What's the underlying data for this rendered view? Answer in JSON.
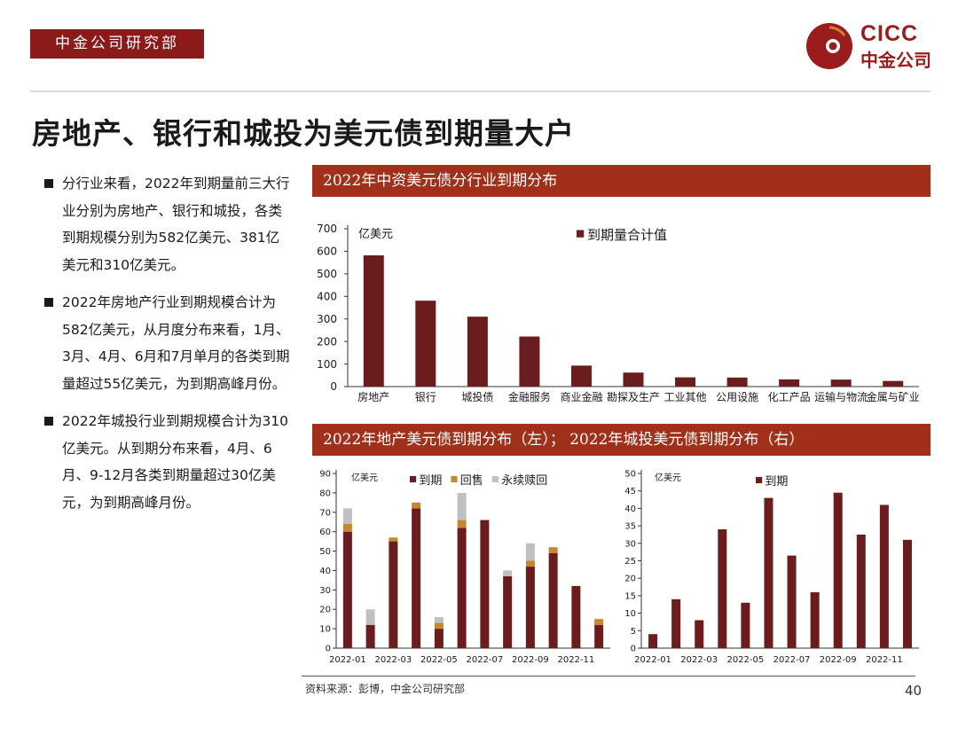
{
  "header": {
    "dept": "中金公司研究部",
    "logo_en": "CICC",
    "logo_cn": "中金公司"
  },
  "title": "房地产、银行和城投为美元债到期量大户",
  "bullets": [
    "分行业来看，2022年到期量前三大行业分别为房地产、银行和城投，各类到期规模分别为582亿美元、381亿美元和310亿美元。",
    "2022年房地产行业到期规模合计为582亿美元，从月度分布来看，1月、3月、4月、6月和7月单月的各类到期量超过55亿美元，为到期高峰月份。",
    "2022年城投行业到期规模合计为310亿美元。从到期分布来看，4月、6月、9-12月各类到期量超过30亿美元，为到期高峰月份。"
  ],
  "banners": {
    "top": "2022年中资美元债分行业到期分布",
    "bottom": "2022年地产美元债到期分布（左）； 2022年城投美元债到期分布（右）"
  },
  "footer": {
    "source": "资料来源：彭博，中金公司研究部",
    "page": "40"
  },
  "colors": {
    "maturity": "#6b1c1c",
    "putback": "#c8862e",
    "perpetual": "#c0c0c0",
    "banner": "#a0301a"
  },
  "chart_data": [
    {
      "type": "bar",
      "ylabel": "亿美元",
      "ylim": [
        0,
        700
      ],
      "yticks": [
        0,
        100,
        200,
        300,
        400,
        500,
        600,
        700
      ],
      "legend_position": "top-right",
      "categories": [
        "房地产",
        "银行",
        "城投债",
        "金融服务",
        "商业金融",
        "勘探及生产",
        "工业其他",
        "公用设施",
        "化工产品",
        "运输与物流",
        "金属与矿业"
      ],
      "series": [
        {
          "name": "到期量合计值",
          "values": [
            582,
            381,
            310,
            222,
            93,
            62,
            41,
            40,
            32,
            31,
            25
          ]
        }
      ]
    },
    {
      "type": "bar",
      "stacked": true,
      "ylabel": "亿美元",
      "ylim": [
        0,
        90
      ],
      "yticks": [
        0,
        10,
        20,
        30,
        40,
        50,
        60,
        70,
        80,
        90
      ],
      "legend_position": "top",
      "categories": [
        "2022-01",
        "2022-02",
        "2022-03",
        "2022-04",
        "2022-05",
        "2022-06",
        "2022-07",
        "2022-08",
        "2022-09",
        "2022-10",
        "2022-11",
        "2022-12"
      ],
      "xticks": [
        "2022-01",
        "2022-03",
        "2022-05",
        "2022-07",
        "2022-09",
        "2022-11"
      ],
      "series": [
        {
          "name": "到期",
          "values": [
            60,
            12,
            55,
            72,
            10,
            62,
            66,
            37,
            42,
            49,
            32,
            12
          ]
        },
        {
          "name": "回售",
          "values": [
            4,
            0,
            2,
            3,
            3,
            4,
            0,
            0,
            3,
            3,
            0,
            3
          ]
        },
        {
          "name": "永续赎回",
          "values": [
            8,
            8,
            0,
            0,
            3,
            14,
            0,
            3,
            9,
            0,
            0,
            0
          ]
        }
      ]
    },
    {
      "type": "bar",
      "ylabel": "亿美元",
      "ylim": [
        0,
        50
      ],
      "yticks": [
        0,
        5,
        10,
        15,
        20,
        25,
        30,
        35,
        40,
        45,
        50
      ],
      "legend_position": "top",
      "categories": [
        "2022-01",
        "2022-02",
        "2022-03",
        "2022-04",
        "2022-05",
        "2022-06",
        "2022-07",
        "2022-08",
        "2022-09",
        "2022-10",
        "2022-11",
        "2022-12"
      ],
      "xticks": [
        "2022-01",
        "2022-03",
        "2022-05",
        "2022-07",
        "2022-09",
        "2022-11"
      ],
      "series": [
        {
          "name": "到期",
          "values": [
            4,
            14,
            8,
            34,
            13,
            43,
            26.5,
            16,
            44.5,
            32.5,
            41,
            31
          ]
        }
      ]
    }
  ]
}
